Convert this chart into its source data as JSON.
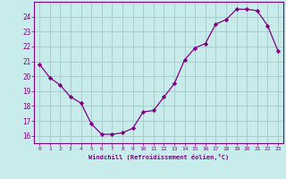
{
  "x": [
    0,
    1,
    2,
    3,
    4,
    5,
    6,
    7,
    8,
    9,
    10,
    11,
    12,
    13,
    14,
    15,
    16,
    17,
    18,
    19,
    20,
    21,
    22,
    23
  ],
  "y": [
    20.8,
    19.9,
    19.4,
    18.6,
    18.2,
    16.8,
    16.1,
    16.1,
    16.2,
    16.5,
    17.6,
    17.7,
    18.6,
    19.5,
    21.1,
    21.9,
    22.2,
    23.5,
    23.8,
    24.5,
    24.5,
    24.4,
    23.4,
    21.7
  ],
  "line_color": "#800080",
  "marker": "D",
  "marker_size": 2.2,
  "bg_color": "#c8ecec",
  "grid_color": "#aacccc",
  "xlabel": "Windchill (Refroidissement éolien,°C)",
  "xlabel_color": "#800080",
  "tick_color": "#800080",
  "ylim": [
    15.5,
    25.0
  ],
  "xlim": [
    -0.5,
    23.5
  ],
  "yticks": [
    16,
    17,
    18,
    19,
    20,
    21,
    22,
    23,
    24
  ],
  "xticks": [
    0,
    1,
    2,
    3,
    4,
    5,
    6,
    7,
    8,
    9,
    10,
    11,
    12,
    13,
    14,
    15,
    16,
    17,
    18,
    19,
    20,
    21,
    22,
    23
  ]
}
